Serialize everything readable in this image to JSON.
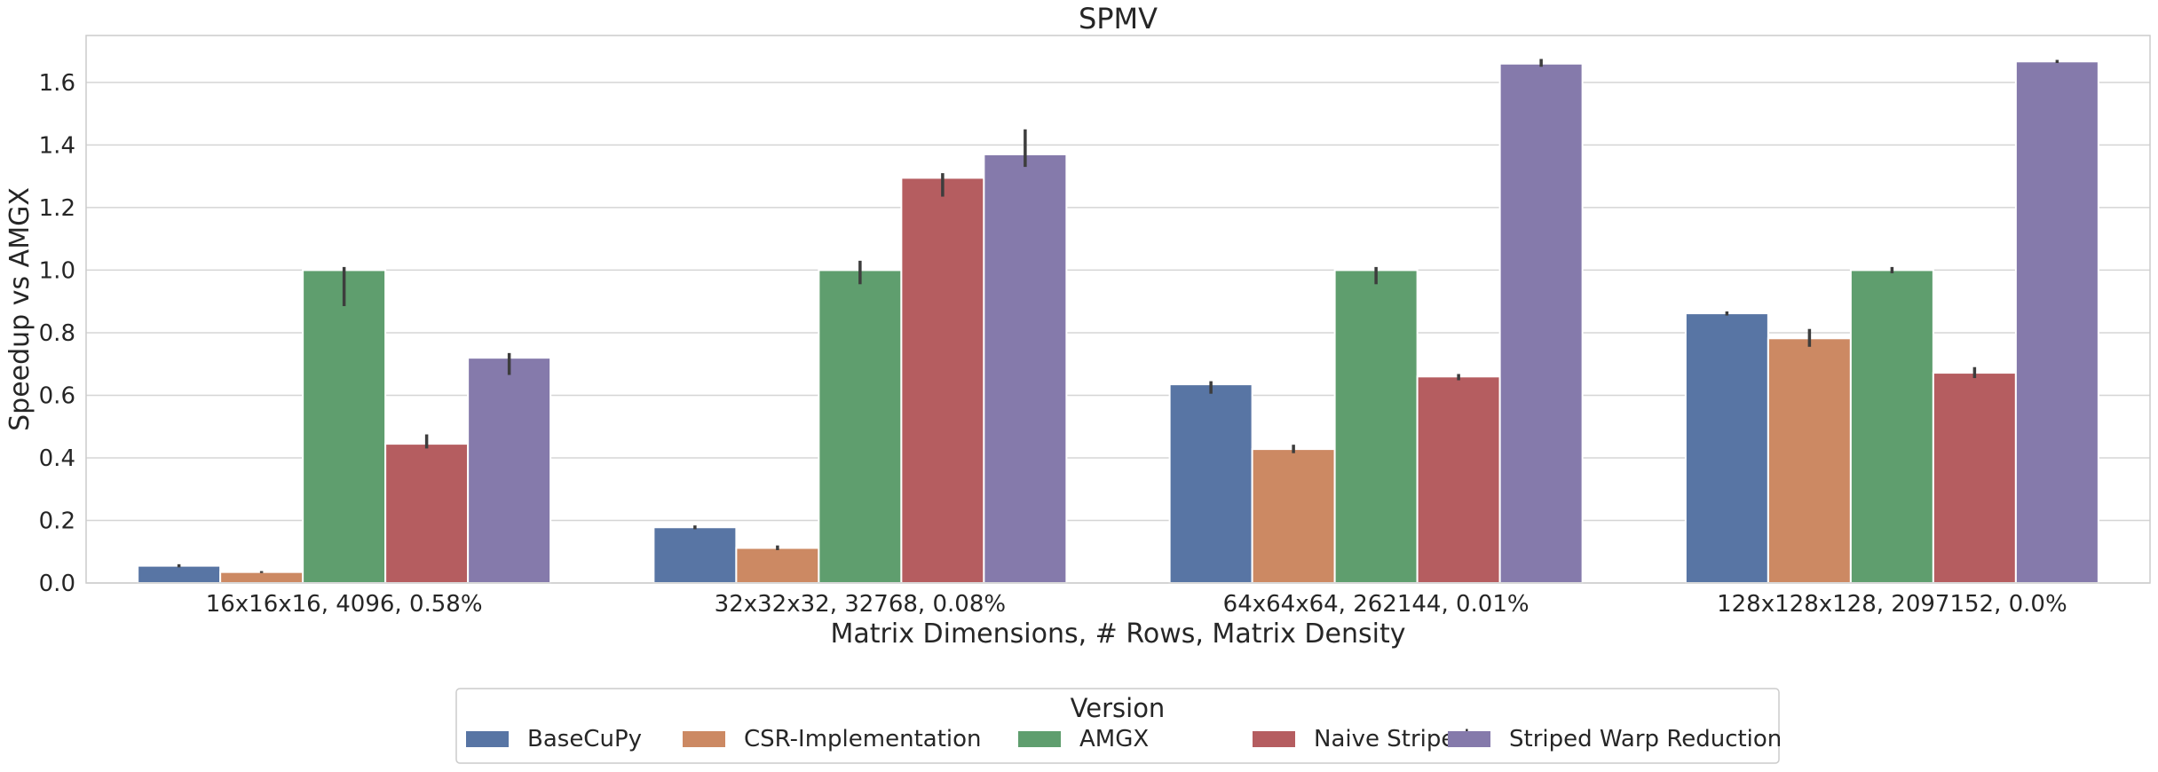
{
  "chart_data": {
    "type": "bar",
    "title": "SPMV",
    "xlabel": "Matrix Dimensions, # Rows, Matrix Density",
    "ylabel": "Speedup vs AMGX",
    "categories": [
      "16x16x16, 4096, 0.58%",
      "32x32x32, 32768, 0.08%",
      "64x64x64, 262144, 0.01%",
      "128x128x128, 2097152, 0.0%"
    ],
    "ylim": [
      0,
      1.75
    ],
    "yticks": [
      "0.0",
      "0.2",
      "0.4",
      "0.6",
      "0.8",
      "1.0",
      "1.2",
      "1.4",
      "1.6"
    ],
    "grid": true,
    "legend": {
      "title": "Version",
      "placement": "bottom-center"
    },
    "series": [
      {
        "name": "BaseCuPy",
        "color": "#5875a4",
        "values": [
          0.055,
          0.178,
          0.635,
          0.862
        ],
        "err_low": [
          0.05,
          0.172,
          0.605,
          0.855
        ],
        "err_high": [
          0.06,
          0.184,
          0.645,
          0.868
        ]
      },
      {
        "name": "CSR-Implementation",
        "color": "#cc8963",
        "values": [
          0.035,
          0.112,
          0.428,
          0.782
        ],
        "err_low": [
          0.032,
          0.105,
          0.415,
          0.755
        ],
        "err_high": [
          0.038,
          0.12,
          0.442,
          0.812
        ]
      },
      {
        "name": "AMGX",
        "color": "#5f9e6e",
        "values": [
          1.0,
          1.0,
          1.0,
          1.0
        ],
        "err_low": [
          0.885,
          0.955,
          0.955,
          0.99
        ],
        "err_high": [
          1.01,
          1.03,
          1.01,
          1.01
        ]
      },
      {
        "name": "Naive Striped",
        "color": "#b55d60",
        "values": [
          0.445,
          1.295,
          0.66,
          0.672
        ],
        "err_low": [
          0.43,
          1.235,
          0.648,
          0.655
        ],
        "err_high": [
          0.475,
          1.31,
          0.668,
          0.69
        ]
      },
      {
        "name": "Striped Warp Reduction",
        "color": "#857aab",
        "values": [
          0.72,
          1.37,
          1.66,
          1.667
        ],
        "err_low": [
          0.665,
          1.33,
          1.65,
          1.662
        ],
        "err_high": [
          0.735,
          1.45,
          1.675,
          1.672
        ]
      }
    ]
  }
}
